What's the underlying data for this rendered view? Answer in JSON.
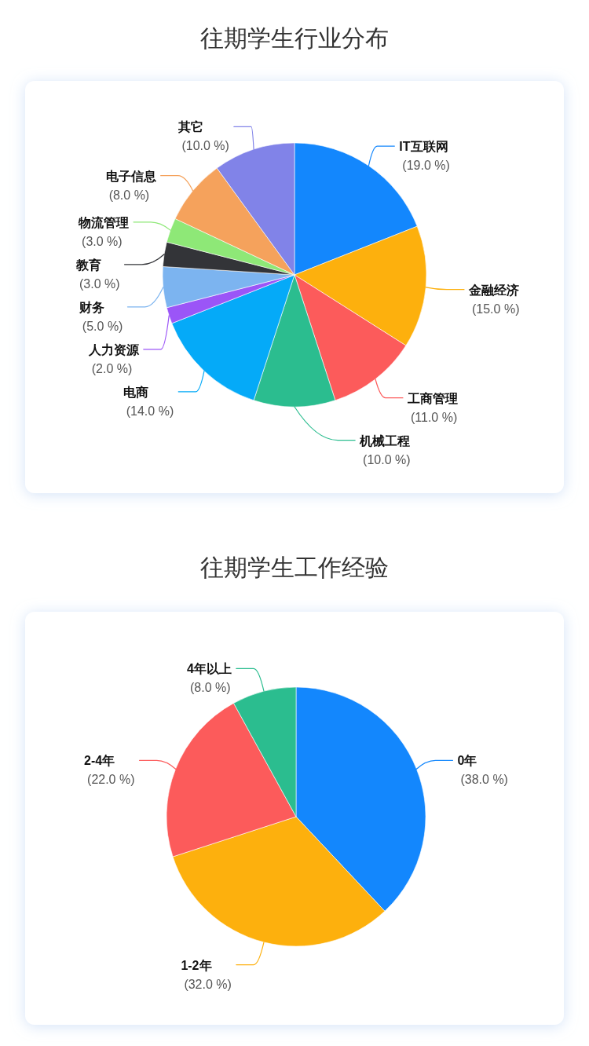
{
  "chart_data": [
    {
      "type": "pie",
      "title": "往期学生行业分布",
      "categories": [
        "IT互联网",
        "金融经济",
        "工商管理",
        "机械工程",
        "电商",
        "人力资源",
        "财务",
        "教育",
        "物流管理",
        "电子信息",
        "其它"
      ],
      "values": [
        19,
        15,
        11,
        10,
        14,
        2,
        5,
        3,
        3,
        8,
        10
      ],
      "colors": [
        "#1387fd",
        "#fdb00d",
        "#fc5b5b",
        "#2bbd8f",
        "#05aaf8",
        "#9b55f7",
        "#7cb4f0",
        "#333438",
        "#8ee877",
        "#f5a25c",
        "#8183e8"
      ],
      "value_labels": [
        "(19.0 %)",
        "(15.0 %)",
        "(11.0 %)",
        "(10.0 %)",
        "(14.0 %)",
        "(2.0 %)",
        "(5.0 %)",
        "(3.0 %)",
        "(3.0 %)",
        "(8.0 %)",
        "(10.0 %)"
      ]
    },
    {
      "type": "pie",
      "title": "往期学生工作经验",
      "categories": [
        "0年",
        "1-2年",
        "2-4年",
        "4年以上"
      ],
      "values": [
        38,
        32,
        22,
        8
      ],
      "colors": [
        "#1387fd",
        "#fdb00d",
        "#fc5b5b",
        "#2bbd8f"
      ],
      "value_labels": [
        "(38.0 %)",
        "(32.0 %)",
        "(22.0 %)",
        "(8.0 %)"
      ]
    }
  ]
}
